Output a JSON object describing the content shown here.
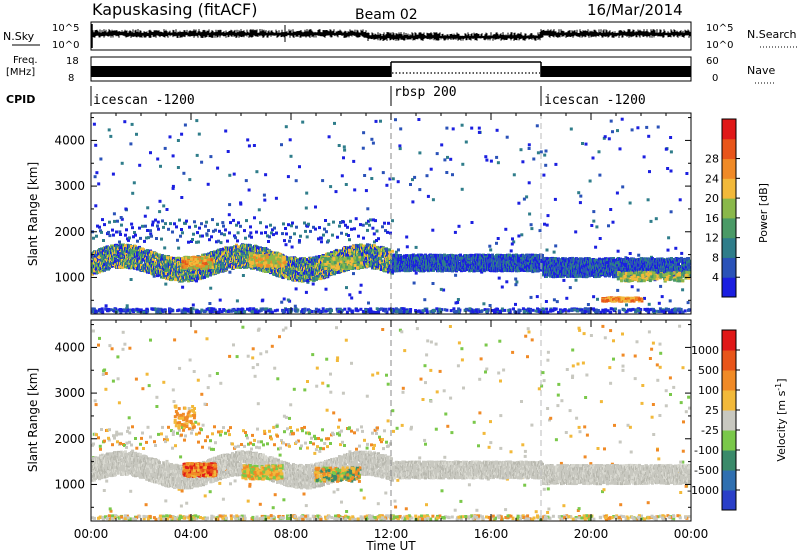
{
  "header": {
    "station": "Kapuskasing (fitACF)",
    "beam": "Beam 02",
    "date": "16/Mar/2014"
  },
  "strip": {
    "nsky_label": "N.Sky",
    "nsky_ticks": [
      "10^5",
      "10^0"
    ],
    "nsearch_label": "N.Search",
    "nsearch_ticks": [
      "10^5",
      "10^0"
    ],
    "freq_label_1": "Freq.",
    "freq_label_2": "[MHz]",
    "freq_ticks": [
      "18",
      "8"
    ],
    "nave_label": "Nave",
    "nave_ticks": [
      "60",
      "0"
    ],
    "cpid_label": "CPID",
    "cpid_segments": [
      {
        "label": "icescan -1200",
        "start": 0,
        "end": 12
      },
      {
        "label": "rbsp 200",
        "start": 12,
        "end": 18
      },
      {
        "label": "icescan -1200",
        "start": 18,
        "end": 24
      }
    ]
  },
  "chart_data": [
    {
      "type": "heatmap",
      "panel": "power",
      "ylabel": "Slant Range [km]",
      "yticks": [
        "1000",
        "2000",
        "3000",
        "4000"
      ],
      "ylim": [
        200,
        4600
      ],
      "colorbar": {
        "label": "Power [dB]",
        "ticks": [
          "4",
          "8",
          "12",
          "16",
          "20",
          "24",
          "28"
        ],
        "colors": [
          "#1b1fe0",
          "#2a52b8",
          "#2f7d8a",
          "#4a9a66",
          "#8ab84a",
          "#f2b93a",
          "#f08a26",
          "#e8551a",
          "#e01818"
        ]
      }
    },
    {
      "type": "heatmap",
      "panel": "velocity",
      "ylabel": "Slant Range [km]",
      "yticks": [
        "1000",
        "2000",
        "3000",
        "4000"
      ],
      "ylim": [
        200,
        4600
      ],
      "colorbar": {
        "label": "Velocity [m s^-1]",
        "ticks": [
          "1000",
          "500",
          "100",
          "25",
          "-25",
          "-100",
          "-500",
          "-1000"
        ],
        "colors": [
          "#2a3fc8",
          "#2f6fb0",
          "#3a8a6a",
          "#7ac84a",
          "#c8c8c0",
          "#f2b93a",
          "#f08a26",
          "#e8551a",
          "#e01818"
        ]
      }
    }
  ],
  "time_axis": {
    "label": "Time UT",
    "ticks": [
      "00:00",
      "04:00",
      "08:00",
      "12:00",
      "16:00",
      "20:00",
      "00:00"
    ],
    "xlim": [
      0,
      24
    ]
  }
}
